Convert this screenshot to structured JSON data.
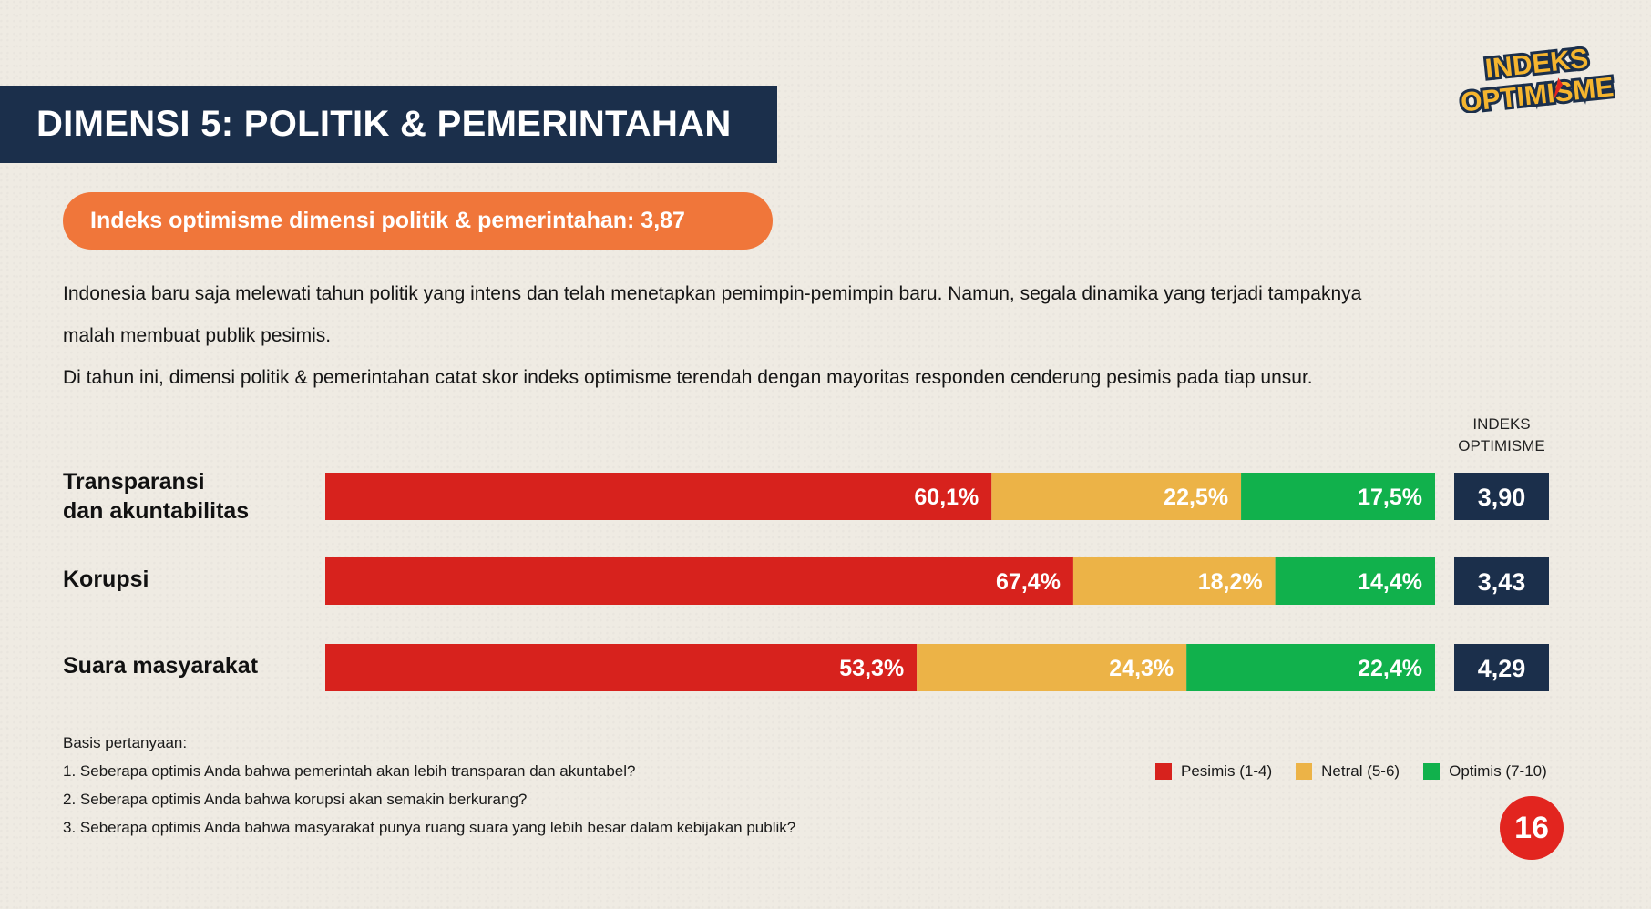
{
  "header": {
    "title": "DIMENSI 5: POLITIK & PEMERINTAHAN",
    "logo_line1": "INDEKS",
    "logo_line2": "OPTIMISME"
  },
  "highlight": "Indeks optimisme dimensi politik & pemerintahan: 3,87",
  "intro": {
    "p1_line1": "Indonesia baru saja melewati tahun politik yang intens dan telah menetapkan pemimpin-pemimpin baru. Namun, segala dinamika yang terjadi tampaknya",
    "p1_line2": "malah membuat publik pesimis.",
    "p2": "Di tahun ini, dimensi politik & pemerintahan catat skor indeks optimisme terendah dengan mayoritas responden cenderung pesimis pada tiap unsur."
  },
  "index_header_line1": "INDEKS",
  "index_header_line2": "OPTIMISME",
  "colors": {
    "pesimis": "#d7221d",
    "netral": "#ecb347",
    "optimis": "#11b14c",
    "index_box": "#1b2f4b",
    "accent": "#f0763a"
  },
  "chart_data": {
    "type": "bar",
    "orientation": "horizontal-stacked",
    "categories": [
      "Transparansi dan akuntabilitas",
      "Korupsi",
      "Suara masyarakat"
    ],
    "category_lines": [
      [
        "Transparansi",
        "dan akuntabilitas"
      ],
      [
        "Korupsi"
      ],
      [
        "Suara masyarakat"
      ]
    ],
    "series": [
      {
        "name": "Pesimis (1-4)",
        "values": [
          60.1,
          67.4,
          53.3
        ],
        "labels": [
          "60,1%",
          "67,4%",
          "53,3%"
        ]
      },
      {
        "name": "Netral (5-6)",
        "values": [
          22.5,
          18.2,
          24.3
        ],
        "labels": [
          "22,5%",
          "18,2%",
          "24,3%"
        ]
      },
      {
        "name": "Optimis (7-10)",
        "values": [
          17.5,
          14.4,
          22.4
        ],
        "labels": [
          "17,5%",
          "14,4%",
          "22,4%"
        ]
      }
    ],
    "index_values": [
      "3,90",
      "3,43",
      "4,29"
    ],
    "xlim": [
      0,
      100
    ],
    "legend_position": "bottom-right"
  },
  "basis": {
    "title": "Basis pertanyaan:",
    "items": [
      "1. Seberapa optimis Anda bahwa pemerintah akan lebih transparan dan akuntabel?",
      "2. Seberapa optimis Anda bahwa korupsi akan semakin berkurang?",
      "3. Seberapa optimis Anda bahwa masyarakat punya ruang suara yang lebih besar dalam kebijakan publik?"
    ]
  },
  "page_number": "16"
}
